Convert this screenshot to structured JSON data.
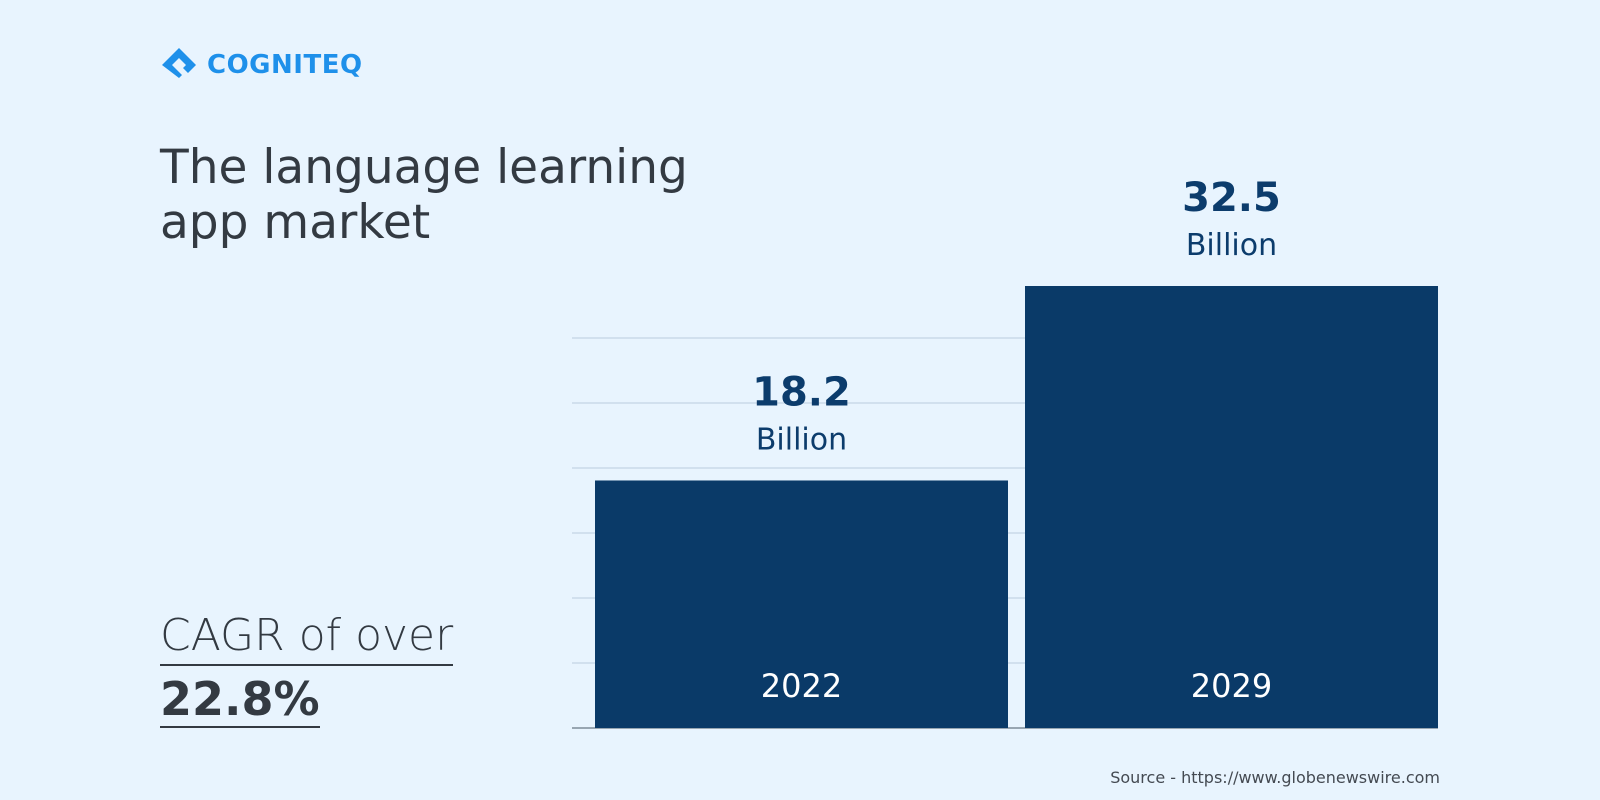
{
  "brand": {
    "name": "COGNITEQ",
    "color": "#1e90ea"
  },
  "heading": {
    "title": "The language learning app market"
  },
  "cagr": {
    "label": "CAGR of over",
    "value": "22.8%"
  },
  "source": "Source - https://www.globenewswire.com",
  "chart_data": {
    "type": "bar",
    "title": "The language learning app market",
    "categories": [
      "2022",
      "2029"
    ],
    "values": [
      18.2,
      32.5
    ],
    "value_labels": [
      "18.2",
      "32.5"
    ],
    "unit_label": "Billion",
    "xlabel": "",
    "ylabel": "",
    "grid": true,
    "bar_color": "#0a3a68"
  }
}
